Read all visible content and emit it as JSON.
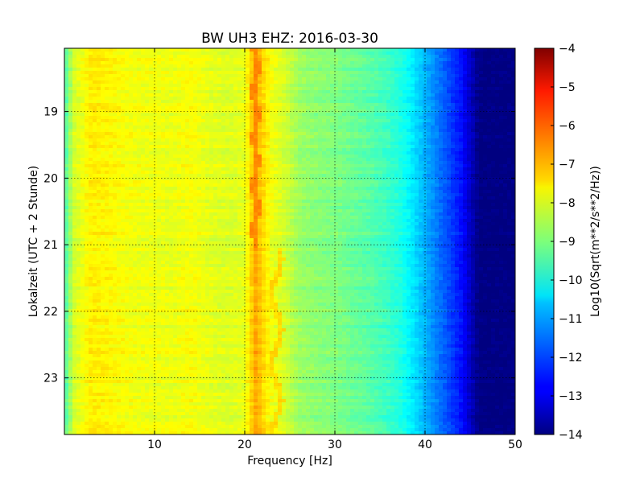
{
  "chart_data": {
    "type": "heatmap",
    "title": "BW UH3 EHZ: 2016-03-30",
    "xlabel": "Frequency [Hz]",
    "ylabel": "Lokalzeit (UTC + 2 Stunde)",
    "xlim": [
      0,
      50
    ],
    "ylim": [
      18.05,
      23.85
    ],
    "x_ticks": [
      10,
      20,
      30,
      40,
      50
    ],
    "x_tick_labels": [
      "10",
      "20",
      "30",
      "40",
      "50"
    ],
    "y_ticks": [
      19,
      20,
      21,
      22,
      23
    ],
    "y_tick_labels": [
      "19",
      "20",
      "21",
      "22",
      "23"
    ],
    "y_inverted": true,
    "grid": true,
    "colormap": "jet",
    "colorbar": {
      "label": "Log10(Sqrt(m**2/s**2/Hz))",
      "range": [
        -14,
        -4
      ],
      "ticks": [
        -4,
        -5,
        -6,
        -7,
        -8,
        -9,
        -10,
        -11,
        -12,
        -13,
        -14
      ],
      "tick_labels": [
        "−4",
        "−5",
        "−6",
        "−7",
        "−8",
        "−9",
        "−10",
        "−11",
        "−12",
        "−13",
        "−14"
      ]
    },
    "spectral_profile": {
      "frequency_hz": [
        0,
        1,
        3,
        5,
        8,
        10,
        12,
        14,
        16,
        18,
        20,
        21.2,
        23,
        24.5,
        26,
        28,
        30,
        32,
        34,
        36,
        37,
        38,
        39,
        40,
        41,
        42,
        43,
        44,
        45,
        46,
        50
      ],
      "level": [
        -9.6,
        -8.2,
        -7.6,
        -7.7,
        -7.9,
        -7.9,
        -7.95,
        -7.8,
        -8.0,
        -8.1,
        -8.0,
        -6.9,
        -7.9,
        -8.2,
        -8.7,
        -8.9,
        -9.0,
        -9.2,
        -9.4,
        -9.7,
        -9.9,
        -10.2,
        -10.6,
        -11.0,
        -11.4,
        -11.8,
        -12.2,
        -12.6,
        -13.3,
        -14.0,
        -14.0
      ]
    },
    "tonal_line": {
      "before_21h_hz": 21.2,
      "after_21h_hz": 23.5,
      "level_before": -6.6,
      "level_after": -7.4,
      "switch_time": 21
    }
  }
}
